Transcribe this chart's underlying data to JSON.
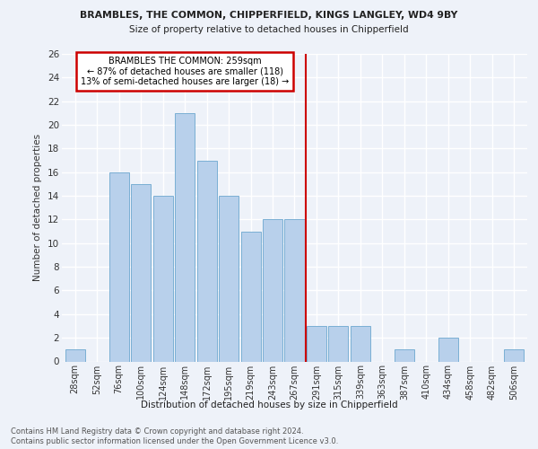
{
  "title1": "BRAMBLES, THE COMMON, CHIPPERFIELD, KINGS LANGLEY, WD4 9BY",
  "title2": "Size of property relative to detached houses in Chipperfield",
  "xlabel": "Distribution of detached houses by size in Chipperfield",
  "ylabel": "Number of detached properties",
  "categories": [
    "28sqm",
    "52sqm",
    "76sqm",
    "100sqm",
    "124sqm",
    "148sqm",
    "172sqm",
    "195sqm",
    "219sqm",
    "243sqm",
    "267sqm",
    "291sqm",
    "315sqm",
    "339sqm",
    "363sqm",
    "387sqm",
    "410sqm",
    "434sqm",
    "458sqm",
    "482sqm",
    "506sqm"
  ],
  "values": [
    1,
    0,
    16,
    15,
    14,
    21,
    17,
    14,
    11,
    12,
    12,
    3,
    3,
    3,
    0,
    1,
    0,
    2,
    0,
    0,
    1
  ],
  "bar_color": "#b8d0eb",
  "bar_edge_color": "#7aafd4",
  "property_label": "BRAMBLES THE COMMON: 259sqm",
  "annotation_line1": "← 87% of detached houses are smaller (118)",
  "annotation_line2": "13% of semi-detached houses are larger (18) →",
  "vline_color": "#cc0000",
  "vline_x_index": 10.5,
  "annotation_box_color": "#ffffff",
  "annotation_box_edge": "#cc0000",
  "ylim": [
    0,
    26
  ],
  "yticks": [
    0,
    2,
    4,
    6,
    8,
    10,
    12,
    14,
    16,
    18,
    20,
    22,
    24,
    26
  ],
  "footer1": "Contains HM Land Registry data © Crown copyright and database right 2024.",
  "footer2": "Contains public sector information licensed under the Open Government Licence v3.0.",
  "bg_color": "#eef2f9",
  "plot_bg_color": "#eef2f9",
  "grid_color": "#ffffff"
}
